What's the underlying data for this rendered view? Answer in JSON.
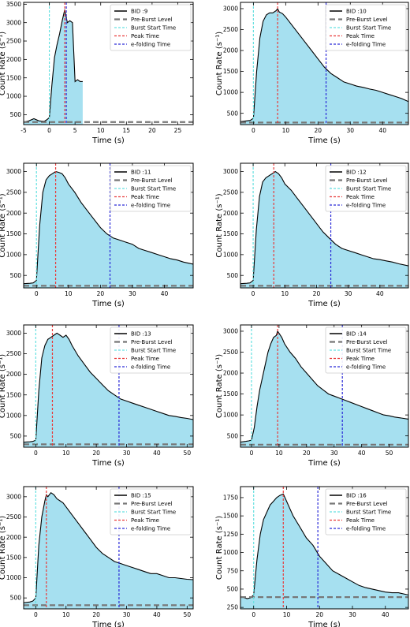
{
  "colors": {
    "fill": "#a6e0f0",
    "line": "#000000",
    "preburst": "#777777",
    "start": "#66e0e0",
    "peak": "#e83a3a",
    "efold": "#2a2ad8"
  },
  "chart_data": [
    {
      "type": "area",
      "legend": [
        "BID :9",
        "Pre-Burst Level",
        "Burst Start Time",
        "Peak Time",
        "e-folding Time"
      ],
      "xlabel": "Time (s)",
      "ylabel": "Count Rate (s⁻¹)",
      "xlim": [
        -5,
        28
      ],
      "ylim": [
        230,
        3550
      ],
      "xticks": [
        -5,
        0,
        5,
        10,
        15,
        20,
        25
      ],
      "yticks": [
        500,
        1000,
        1500,
        2000,
        2500,
        3000,
        3500
      ],
      "pre_burst_level": 300,
      "burst_start": 0,
      "peak_time": 3,
      "efold_time": 3.3,
      "x": [
        -5,
        -4,
        -3,
        -2,
        -1,
        -0.5,
        0,
        0.5,
        1,
        1.5,
        2,
        2.5,
        3,
        3.5,
        4,
        4.5,
        5,
        5.5,
        6,
        6.3,
        6.5
      ],
      "y": [
        300,
        330,
        390,
        330,
        320,
        360,
        420,
        1300,
        2050,
        2400,
        2700,
        3050,
        3350,
        3000,
        3050,
        3000,
        1400,
        1450,
        1400,
        1400,
        1400
      ]
    },
    {
      "type": "area",
      "legend": [
        "BID :10",
        "Pre-Burst Level",
        "Burst Start Time",
        "Peak Time",
        "e-folding Time"
      ],
      "xlabel": "Time (s)",
      "ylabel": "Count Rate (s⁻¹)",
      "xlim": [
        -4,
        48
      ],
      "ylim": [
        230,
        3150
      ],
      "xticks": [
        0,
        10,
        20,
        30,
        40
      ],
      "yticks": [
        500,
        1000,
        1500,
        2000,
        2500,
        3000
      ],
      "pre_burst_level": 280,
      "burst_start": 0,
      "peak_time": 7.5,
      "efold_time": 22.5,
      "x": [
        -4,
        -2,
        -1,
        0,
        1,
        2,
        3,
        4,
        5,
        6,
        7,
        7.5,
        8,
        9,
        10,
        12,
        14,
        16,
        18,
        20,
        22,
        24,
        26,
        28,
        30,
        32,
        34,
        36,
        38,
        40,
        42,
        44,
        46,
        48
      ],
      "y": [
        300,
        320,
        330,
        380,
        1500,
        2300,
        2700,
        2850,
        2900,
        2900,
        2950,
        3000,
        2920,
        2880,
        2800,
        2600,
        2400,
        2200,
        2000,
        1800,
        1600,
        1450,
        1350,
        1250,
        1200,
        1150,
        1120,
        1080,
        1050,
        1000,
        950,
        900,
        850,
        780
      ]
    },
    {
      "type": "area",
      "legend": [
        "BID :11",
        "Pre-Burst Level",
        "Burst Start Time",
        "Peak Time",
        "e-folding Time"
      ],
      "xlabel": "Time (s)",
      "ylabel": "Count Rate (s⁻¹)",
      "xlim": [
        -4,
        49
      ],
      "ylim": [
        200,
        3200
      ],
      "xticks": [
        0,
        10,
        20,
        30,
        40
      ],
      "yticks": [
        500,
        1000,
        1500,
        2000,
        2500,
        3000
      ],
      "pre_burst_level": 250,
      "burst_start": 0,
      "peak_time": 6,
      "efold_time": 23,
      "x": [
        -4,
        -2,
        -1,
        0,
        1,
        2,
        3,
        4,
        5,
        6,
        7,
        8,
        9,
        10,
        12,
        14,
        16,
        18,
        20,
        22,
        24,
        26,
        28,
        30,
        32,
        34,
        36,
        38,
        40,
        42,
        44,
        46,
        49
      ],
      "y": [
        300,
        310,
        320,
        380,
        1700,
        2500,
        2800,
        2900,
        2950,
        3000,
        2980,
        2950,
        2850,
        2700,
        2500,
        2250,
        2050,
        1850,
        1650,
        1500,
        1400,
        1350,
        1300,
        1250,
        1150,
        1100,
        1050,
        1000,
        950,
        900,
        870,
        820,
        770
      ]
    },
    {
      "type": "area",
      "legend": [
        "BID :12",
        "Pre-Burst Level",
        "Burst Start Time",
        "Peak Time",
        "e-folding Time"
      ],
      "xlabel": "Time (s)",
      "ylabel": "Count Rate (s⁻¹)",
      "xlim": [
        -4,
        49
      ],
      "ylim": [
        200,
        3200
      ],
      "xticks": [
        0,
        10,
        20,
        30,
        40
      ],
      "yticks": [
        500,
        1000,
        1500,
        2000,
        2500,
        3000
      ],
      "pre_burst_level": 250,
      "burst_start": 0,
      "peak_time": 6.5,
      "efold_time": 24.5,
      "x": [
        -4,
        -2,
        -1,
        0,
        1,
        2,
        3,
        4,
        5,
        6,
        7,
        8,
        9,
        10,
        12,
        14,
        16,
        18,
        20,
        22,
        24,
        26,
        28,
        30,
        32,
        34,
        36,
        38,
        40,
        42,
        44,
        46,
        49
      ],
      "y": [
        300,
        310,
        320,
        380,
        1600,
        2400,
        2750,
        2850,
        2900,
        2950,
        3000,
        2950,
        2850,
        2700,
        2550,
        2350,
        2150,
        1950,
        1750,
        1550,
        1400,
        1250,
        1150,
        1100,
        1050,
        1000,
        950,
        900,
        880,
        850,
        820,
        780,
        730
      ]
    },
    {
      "type": "area",
      "legend": [
        "BID :13",
        "Pre-Burst Level",
        "Burst Start Time",
        "Peak Time",
        "e-folding Time"
      ],
      "xlabel": "Time (s)",
      "ylabel": "Count Rate (s⁻¹)",
      "xlim": [
        -4,
        52
      ],
      "ylim": [
        230,
        3200
      ],
      "xticks": [
        0,
        10,
        20,
        30,
        40,
        50
      ],
      "yticks": [
        500,
        1000,
        1500,
        2000,
        2500,
        3000
      ],
      "pre_burst_level": 300,
      "burst_start": 0,
      "peak_time": 5.5,
      "efold_time": 27.5,
      "x": [
        -4,
        -2,
        -1,
        0,
        1,
        2,
        3,
        4,
        5,
        6,
        7,
        8,
        9,
        10,
        11,
        12,
        14,
        16,
        18,
        20,
        22,
        24,
        26,
        28,
        30,
        32,
        34,
        36,
        38,
        40,
        42,
        44,
        46,
        48,
        50,
        52
      ],
      "y": [
        350,
        360,
        370,
        400,
        1600,
        2400,
        2700,
        2850,
        2900,
        2950,
        3000,
        2950,
        2900,
        2950,
        2850,
        2700,
        2450,
        2250,
        2050,
        1900,
        1750,
        1600,
        1500,
        1400,
        1350,
        1300,
        1250,
        1200,
        1150,
        1100,
        1050,
        1000,
        980,
        950,
        930,
        900
      ]
    },
    {
      "type": "area",
      "legend": [
        "BID :14",
        "Pre-Burst Level",
        "Burst Start Time",
        "Peak Time",
        "e-folding Time"
      ],
      "xlabel": "Time (s)",
      "ylabel": "Count Rate (s⁻¹)",
      "xlim": [
        -4,
        57
      ],
      "ylim": [
        230,
        3150
      ],
      "xticks": [
        0,
        10,
        20,
        30,
        40,
        50
      ],
      "yticks": [
        500,
        1000,
        1500,
        2000,
        2500,
        3000
      ],
      "pre_burst_level": 290,
      "burst_start": 0,
      "peak_time": 9.5,
      "efold_time": 33,
      "x": [
        -4,
        -2,
        -1,
        0,
        1,
        2,
        3,
        4,
        5,
        6,
        7,
        8,
        9,
        9.5,
        10,
        11,
        12,
        14,
        16,
        18,
        20,
        22,
        24,
        26,
        28,
        30,
        32,
        34,
        36,
        38,
        40,
        42,
        44,
        46,
        48,
        50,
        52,
        54,
        57
      ],
      "y": [
        350,
        370,
        380,
        400,
        700,
        1200,
        1600,
        1900,
        2200,
        2500,
        2700,
        2850,
        2900,
        3000,
        2950,
        2850,
        2700,
        2500,
        2350,
        2150,
        2000,
        1850,
        1700,
        1600,
        1500,
        1450,
        1400,
        1350,
        1300,
        1250,
        1200,
        1150,
        1100,
        1050,
        1000,
        980,
        950,
        930,
        900
      ]
    },
    {
      "type": "area",
      "legend": [
        "BID :15",
        "Pre-Burst Level",
        "Burst Start Time",
        "Peak Time",
        "e-folding Time"
      ],
      "xlabel": "Time (s)",
      "ylabel": "Count Rate (s⁻¹)",
      "xlim": [
        -4,
        52
      ],
      "ylim": [
        230,
        3250
      ],
      "xticks": [
        0,
        10,
        20,
        30,
        40,
        50
      ],
      "yticks": [
        500,
        1000,
        1500,
        2000,
        2500,
        3000
      ],
      "pre_burst_level": 320,
      "burst_start": 0,
      "peak_time": 3.5,
      "efold_time": 27.5,
      "x": [
        -4,
        -2,
        -1,
        0,
        1,
        2,
        3,
        3.5,
        4,
        5,
        6,
        7,
        8,
        9,
        10,
        12,
        14,
        16,
        18,
        20,
        22,
        24,
        26,
        28,
        30,
        32,
        34,
        36,
        38,
        40,
        42,
        44,
        46,
        48,
        50,
        52
      ],
      "y": [
        380,
        400,
        420,
        500,
        1800,
        2500,
        2900,
        3050,
        3000,
        3100,
        3050,
        2950,
        2900,
        2850,
        2750,
        2550,
        2350,
        2150,
        1950,
        1750,
        1600,
        1500,
        1400,
        1350,
        1300,
        1250,
        1200,
        1150,
        1100,
        1100,
        1050,
        1000,
        1000,
        980,
        960,
        950
      ]
    },
    {
      "type": "area",
      "legend": [
        "BID :16",
        "Pre-Burst Level",
        "Burst Start Time",
        "Peak Time",
        "e-folding Time"
      ],
      "xlabel": "Time (s)",
      "ylabel": "Count Rate (s⁻¹)",
      "xlim": [
        -4,
        47
      ],
      "ylim": [
        230,
        1900
      ],
      "xticks": [
        0,
        10,
        20,
        30,
        40
      ],
      "yticks": [
        250,
        500,
        750,
        1000,
        1250,
        1500,
        1750
      ],
      "pre_burst_level": 390,
      "burst_start": 0,
      "peak_time": 9,
      "efold_time": 19.5,
      "x": [
        -4,
        -2,
        -1,
        0,
        1,
        2,
        3,
        4,
        5,
        6,
        7,
        8,
        9,
        10,
        11,
        12,
        14,
        16,
        18,
        20,
        22,
        24,
        26,
        28,
        30,
        32,
        34,
        36,
        38,
        40,
        42,
        44,
        47
      ],
      "y": [
        400,
        370,
        380,
        420,
        900,
        1250,
        1450,
        1550,
        1650,
        1700,
        1750,
        1780,
        1800,
        1700,
        1600,
        1500,
        1350,
        1200,
        1100,
        950,
        850,
        750,
        700,
        650,
        600,
        550,
        520,
        500,
        480,
        460,
        450,
        450,
        420
      ]
    }
  ]
}
